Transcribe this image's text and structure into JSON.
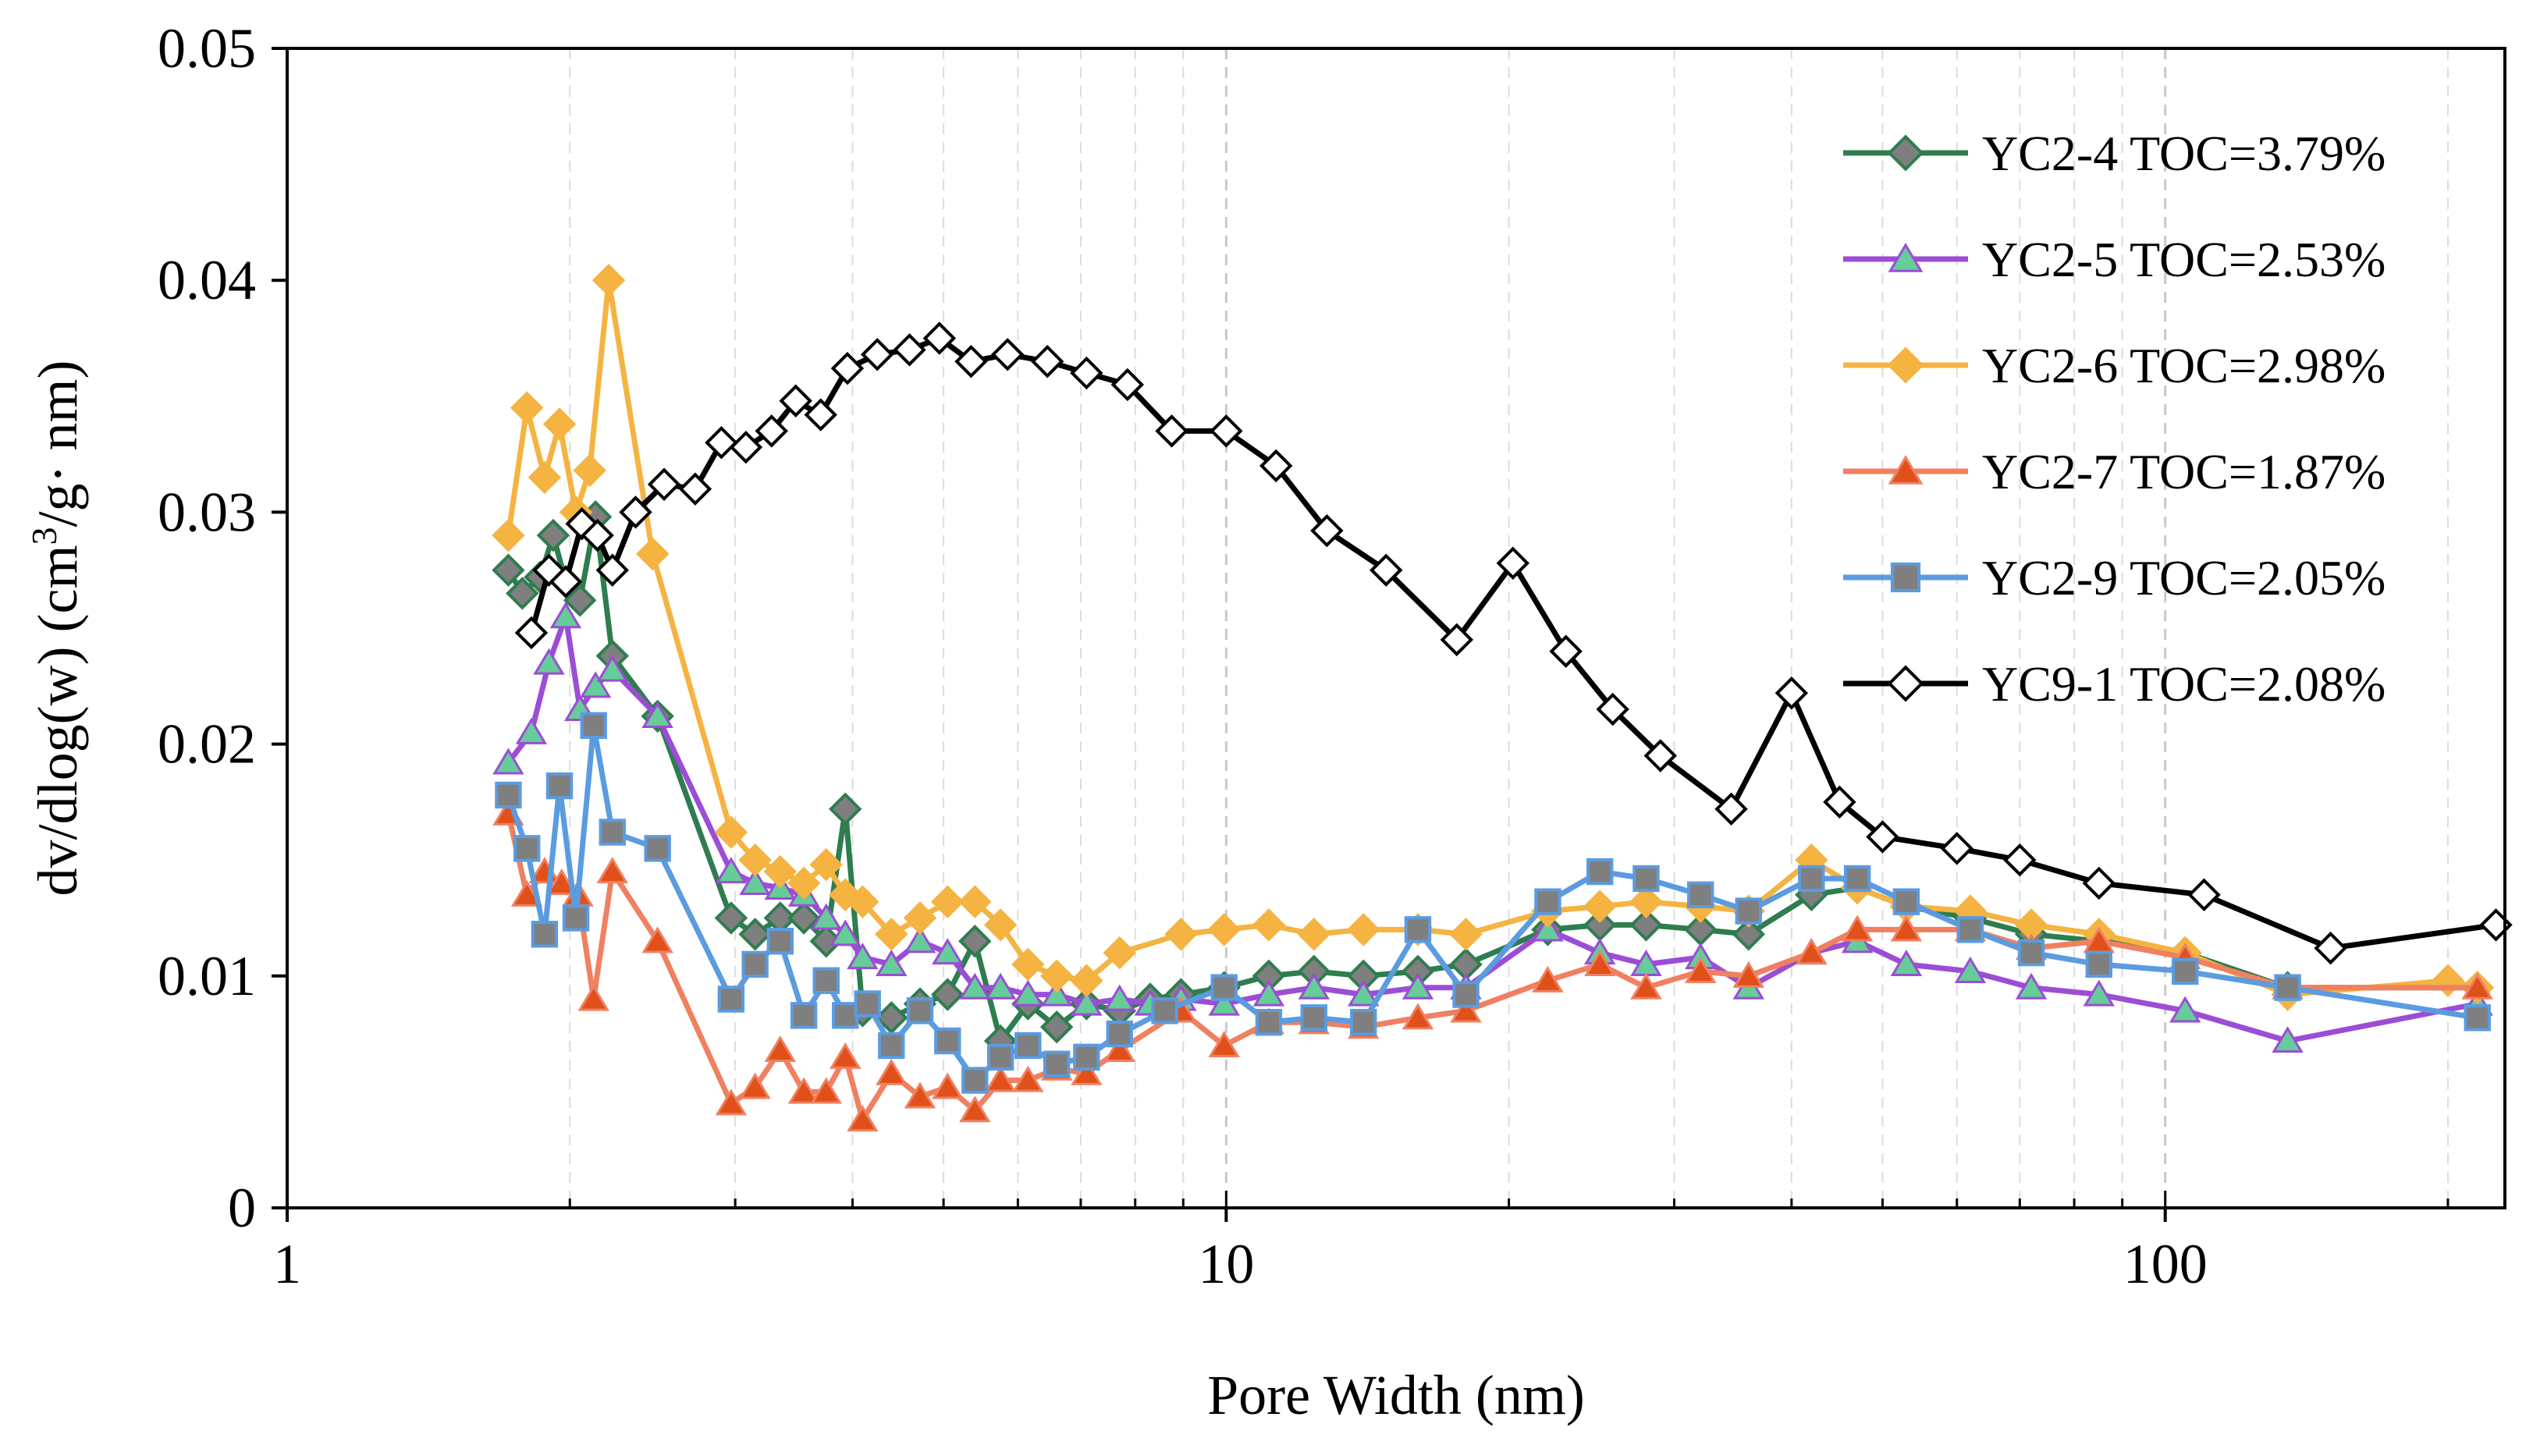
{
  "chart_data": {
    "type": "line",
    "title": "",
    "xlabel": "Pore Width (nm)",
    "ylabel_parts": [
      "dv/dlog(w) (cm",
      "3",
      "/g· nm)"
    ],
    "x_scale": "log",
    "xlim": [
      1,
      230
    ],
    "ylim": [
      0,
      0.05
    ],
    "x_ticks": [
      1,
      10,
      100
    ],
    "x_tick_labels": [
      "1",
      "10",
      "100"
    ],
    "y_ticks": [
      0,
      0.01,
      0.02,
      0.03,
      0.04,
      0.05
    ],
    "y_tick_labels": [
      "0",
      "0.01",
      "0.02",
      "0.03",
      "0.04",
      "0.05"
    ],
    "grid": "vertical dashed gridlines at log decades and minor ticks",
    "legend_position": "top-right",
    "series": [
      {
        "name": "YC2-4 TOC=3.79%",
        "color": "#2E7D4F",
        "marker": "diamond",
        "marker_fill": "#7F7F7F",
        "points": [
          [
            1.72,
            0.0275
          ],
          [
            1.78,
            0.0265
          ],
          [
            1.86,
            0.0272
          ],
          [
            1.92,
            0.029
          ],
          [
            1.98,
            0.027
          ],
          [
            2.05,
            0.0262
          ],
          [
            2.13,
            0.0298
          ],
          [
            2.22,
            0.0238
          ],
          [
            2.48,
            0.0212
          ],
          [
            2.97,
            0.0125
          ],
          [
            3.15,
            0.0118
          ],
          [
            3.35,
            0.0125
          ],
          [
            3.55,
            0.0125
          ],
          [
            3.75,
            0.0115
          ],
          [
            3.93,
            0.0172
          ],
          [
            4.1,
            0.0085
          ],
          [
            4.4,
            0.0082
          ],
          [
            4.72,
            0.0088
          ],
          [
            5.05,
            0.0092
          ],
          [
            5.4,
            0.0115
          ],
          [
            5.75,
            0.0072
          ],
          [
            6.15,
            0.0088
          ],
          [
            6.6,
            0.0078
          ],
          [
            7.1,
            0.0088
          ],
          [
            7.7,
            0.0085
          ],
          [
            8.3,
            0.009
          ],
          [
            8.95,
            0.0092
          ],
          [
            9.95,
            0.0095
          ],
          [
            11.1,
            0.01
          ],
          [
            12.4,
            0.0102
          ],
          [
            14.0,
            0.01
          ],
          [
            16.0,
            0.0102
          ],
          [
            18.0,
            0.0105
          ],
          [
            22.0,
            0.012
          ],
          [
            25.0,
            0.0122
          ],
          [
            28.0,
            0.0122
          ],
          [
            32.0,
            0.012
          ],
          [
            36.0,
            0.0118
          ],
          [
            42.0,
            0.0135
          ],
          [
            47.0,
            0.0138
          ],
          [
            53.0,
            0.013
          ],
          [
            62.0,
            0.0125
          ],
          [
            72.0,
            0.0118
          ],
          [
            85.0,
            0.0115
          ],
          [
            105.0,
            0.011
          ],
          [
            135.0,
            0.0095
          ],
          [
            215.0,
            0.0095
          ]
        ]
      },
      {
        "name": "YC2-5 TOC=2.53%",
        "color": "#9B4DD6",
        "marker": "triangle",
        "marker_fill": "#66CC99",
        "points": [
          [
            1.72,
            0.0192
          ],
          [
            1.82,
            0.0205
          ],
          [
            1.9,
            0.0235
          ],
          [
            1.98,
            0.0255
          ],
          [
            2.05,
            0.0215
          ],
          [
            2.13,
            0.0225
          ],
          [
            2.22,
            0.0232
          ],
          [
            2.48,
            0.0212
          ],
          [
            2.97,
            0.0145
          ],
          [
            3.15,
            0.014
          ],
          [
            3.35,
            0.0138
          ],
          [
            3.55,
            0.0135
          ],
          [
            3.75,
            0.0125
          ],
          [
            3.93,
            0.0118
          ],
          [
            4.1,
            0.0108
          ],
          [
            4.4,
            0.0105
          ],
          [
            4.72,
            0.0115
          ],
          [
            5.05,
            0.011
          ],
          [
            5.4,
            0.0095
          ],
          [
            5.75,
            0.0095
          ],
          [
            6.15,
            0.0092
          ],
          [
            6.6,
            0.0092
          ],
          [
            7.1,
            0.0088
          ],
          [
            7.7,
            0.009
          ],
          [
            8.3,
            0.0088
          ],
          [
            8.95,
            0.009
          ],
          [
            9.95,
            0.0088
          ],
          [
            11.1,
            0.0092
          ],
          [
            12.4,
            0.0095
          ],
          [
            14.0,
            0.0092
          ],
          [
            16.0,
            0.0095
          ],
          [
            18.0,
            0.0095
          ],
          [
            22.0,
            0.012
          ],
          [
            25.0,
            0.011
          ],
          [
            28.0,
            0.0105
          ],
          [
            32.0,
            0.0108
          ],
          [
            36.0,
            0.0095
          ],
          [
            42.0,
            0.011
          ],
          [
            47.0,
            0.0115
          ],
          [
            53.0,
            0.0105
          ],
          [
            62.0,
            0.0102
          ],
          [
            72.0,
            0.0095
          ],
          [
            85.0,
            0.0092
          ],
          [
            105.0,
            0.0085
          ],
          [
            135.0,
            0.0072
          ],
          [
            215.0,
            0.0088
          ]
        ]
      },
      {
        "name": "YC2-6 TOC=2.98%",
        "color": "#F5B342",
        "marker": "diamond",
        "marker_fill": "#F5B342",
        "points": [
          [
            1.72,
            0.029
          ],
          [
            1.8,
            0.0345
          ],
          [
            1.88,
            0.0315
          ],
          [
            1.95,
            0.0338
          ],
          [
            2.03,
            0.03
          ],
          [
            2.1,
            0.0318
          ],
          [
            2.2,
            0.04
          ],
          [
            2.45,
            0.0282
          ],
          [
            2.97,
            0.0162
          ],
          [
            3.15,
            0.015
          ],
          [
            3.35,
            0.0145
          ],
          [
            3.55,
            0.014
          ],
          [
            3.75,
            0.0148
          ],
          [
            3.93,
            0.0135
          ],
          [
            4.1,
            0.0132
          ],
          [
            4.4,
            0.0118
          ],
          [
            4.72,
            0.0125
          ],
          [
            5.05,
            0.0132
          ],
          [
            5.4,
            0.0132
          ],
          [
            5.75,
            0.0122
          ],
          [
            6.15,
            0.0105
          ],
          [
            6.6,
            0.01
          ],
          [
            7.1,
            0.0098
          ],
          [
            7.7,
            0.011
          ],
          [
            8.95,
            0.0118
          ],
          [
            9.95,
            0.012
          ],
          [
            11.1,
            0.0122
          ],
          [
            12.4,
            0.0118
          ],
          [
            14.0,
            0.012
          ],
          [
            16.0,
            0.012
          ],
          [
            18.0,
            0.0118
          ],
          [
            22.0,
            0.0128
          ],
          [
            25.0,
            0.013
          ],
          [
            28.0,
            0.0132
          ],
          [
            32.0,
            0.013
          ],
          [
            36.0,
            0.0128
          ],
          [
            42.0,
            0.015
          ],
          [
            47.0,
            0.0138
          ],
          [
            53.0,
            0.013
          ],
          [
            62.0,
            0.0128
          ],
          [
            72.0,
            0.0122
          ],
          [
            85.0,
            0.0118
          ],
          [
            105.0,
            0.011
          ],
          [
            135.0,
            0.0092
          ],
          [
            200.0,
            0.0098
          ],
          [
            215.0,
            0.0095
          ]
        ]
      },
      {
        "name": "YC2-7 TOC=1.87%",
        "color": "#F08060",
        "marker": "triangle",
        "marker_fill": "#E0501A",
        "points": [
          [
            1.72,
            0.017
          ],
          [
            1.8,
            0.0135
          ],
          [
            1.88,
            0.0145
          ],
          [
            1.96,
            0.014
          ],
          [
            2.04,
            0.0135
          ],
          [
            2.12,
            0.009
          ],
          [
            2.22,
            0.0145
          ],
          [
            2.48,
            0.0115
          ],
          [
            2.97,
            0.0045
          ],
          [
            3.15,
            0.0052
          ],
          [
            3.35,
            0.0068
          ],
          [
            3.55,
            0.005
          ],
          [
            3.75,
            0.005
          ],
          [
            3.93,
            0.0065
          ],
          [
            4.1,
            0.0038
          ],
          [
            4.4,
            0.0058
          ],
          [
            4.72,
            0.0048
          ],
          [
            5.05,
            0.0052
          ],
          [
            5.4,
            0.0042
          ],
          [
            5.75,
            0.0055
          ],
          [
            6.15,
            0.0055
          ],
          [
            6.6,
            0.006
          ],
          [
            7.1,
            0.0058
          ],
          [
            7.7,
            0.0068
          ],
          [
            8.95,
            0.0085
          ],
          [
            9.95,
            0.007
          ],
          [
            11.1,
            0.008
          ],
          [
            12.4,
            0.008
          ],
          [
            14.0,
            0.0078
          ],
          [
            16.0,
            0.0082
          ],
          [
            18.0,
            0.0085
          ],
          [
            22.0,
            0.0098
          ],
          [
            25.0,
            0.0105
          ],
          [
            28.0,
            0.0095
          ],
          [
            32.0,
            0.0102
          ],
          [
            36.0,
            0.01
          ],
          [
            42.0,
            0.011
          ],
          [
            47.0,
            0.012
          ],
          [
            53.0,
            0.012
          ],
          [
            62.0,
            0.012
          ],
          [
            72.0,
            0.0112
          ],
          [
            85.0,
            0.0115
          ],
          [
            105.0,
            0.0108
          ],
          [
            135.0,
            0.0095
          ],
          [
            215.0,
            0.0095
          ]
        ]
      },
      {
        "name": "YC2-9 TOC=2.05%",
        "color": "#5B9BE0",
        "marker": "square",
        "marker_fill": "#7F7F7F",
        "points": [
          [
            1.72,
            0.0178
          ],
          [
            1.8,
            0.0155
          ],
          [
            1.88,
            0.0118
          ],
          [
            1.95,
            0.0182
          ],
          [
            2.03,
            0.0125
          ],
          [
            2.12,
            0.0208
          ],
          [
            2.22,
            0.0162
          ],
          [
            2.48,
            0.0155
          ],
          [
            2.97,
            0.009
          ],
          [
            3.15,
            0.0105
          ],
          [
            3.35,
            0.0115
          ],
          [
            3.55,
            0.0083
          ],
          [
            3.75,
            0.0098
          ],
          [
            3.93,
            0.0083
          ],
          [
            4.15,
            0.0088
          ],
          [
            4.4,
            0.007
          ],
          [
            4.72,
            0.0085
          ],
          [
            5.05,
            0.0072
          ],
          [
            5.4,
            0.0055
          ],
          [
            5.75,
            0.0065
          ],
          [
            6.15,
            0.007
          ],
          [
            6.6,
            0.0062
          ],
          [
            7.1,
            0.0065
          ],
          [
            7.7,
            0.0075
          ],
          [
            8.6,
            0.0085
          ],
          [
            9.95,
            0.0095
          ],
          [
            11.1,
            0.008
          ],
          [
            12.4,
            0.0082
          ],
          [
            14.0,
            0.008
          ],
          [
            16.0,
            0.012
          ],
          [
            18.0,
            0.0092
          ],
          [
            22.0,
            0.0132
          ],
          [
            25.0,
            0.0145
          ],
          [
            28.0,
            0.0142
          ],
          [
            32.0,
            0.0135
          ],
          [
            36.0,
            0.0128
          ],
          [
            42.0,
            0.0142
          ],
          [
            47.0,
            0.0142
          ],
          [
            53.0,
            0.0132
          ],
          [
            62.0,
            0.012
          ],
          [
            72.0,
            0.011
          ],
          [
            85.0,
            0.0105
          ],
          [
            105.0,
            0.0102
          ],
          [
            135.0,
            0.0095
          ],
          [
            215.0,
            0.0082
          ]
        ]
      },
      {
        "name": "YC9-1 TOC=2.08%",
        "color": "#000000",
        "marker": "diamond",
        "marker_fill": "#FFFFFF",
        "points": [
          [
            1.82,
            0.0248
          ],
          [
            1.9,
            0.0275
          ],
          [
            1.98,
            0.027
          ],
          [
            2.06,
            0.0295
          ],
          [
            2.14,
            0.029
          ],
          [
            2.22,
            0.0275
          ],
          [
            2.35,
            0.03
          ],
          [
            2.52,
            0.0312
          ],
          [
            2.72,
            0.031
          ],
          [
            2.9,
            0.033
          ],
          [
            3.08,
            0.0328
          ],
          [
            3.28,
            0.0335
          ],
          [
            3.48,
            0.0348
          ],
          [
            3.7,
            0.0342
          ],
          [
            3.95,
            0.0362
          ],
          [
            4.25,
            0.0368
          ],
          [
            4.6,
            0.037
          ],
          [
            4.95,
            0.0375
          ],
          [
            5.35,
            0.0365
          ],
          [
            5.85,
            0.0368
          ],
          [
            6.45,
            0.0365
          ],
          [
            7.1,
            0.036
          ],
          [
            7.85,
            0.0355
          ],
          [
            8.75,
            0.0335
          ],
          [
            10.0,
            0.0335
          ],
          [
            11.3,
            0.032
          ],
          [
            12.8,
            0.0292
          ],
          [
            14.8,
            0.0275
          ],
          [
            17.6,
            0.0245
          ],
          [
            20.2,
            0.0278
          ],
          [
            23.0,
            0.024
          ],
          [
            25.8,
            0.0215
          ],
          [
            29.0,
            0.0195
          ],
          [
            34.5,
            0.0172
          ],
          [
            40.0,
            0.0222
          ],
          [
            45.0,
            0.0175
          ],
          [
            50.0,
            0.016
          ],
          [
            60.0,
            0.0155
          ],
          [
            70.0,
            0.015
          ],
          [
            85.0,
            0.014
          ],
          [
            110.0,
            0.0135
          ],
          [
            150.0,
            0.0112
          ],
          [
            225.0,
            0.0122
          ]
        ]
      }
    ]
  }
}
